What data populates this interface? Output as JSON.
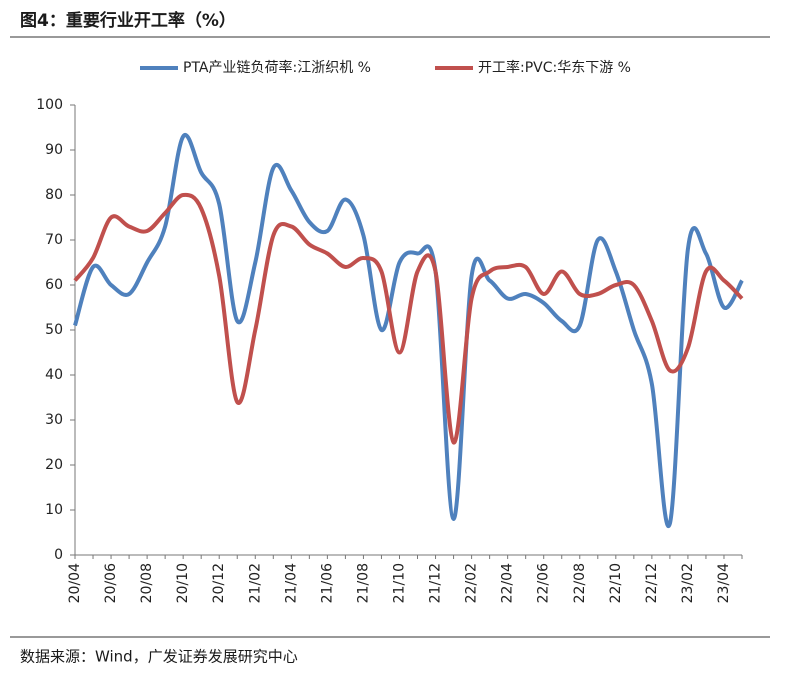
{
  "chart_data": {
    "type": "line",
    "title": "图4：重要行业开工率（%）",
    "source": "数据来源：Wind，广发证券发展研究中心",
    "categories": [
      "20/04",
      null,
      "20/06",
      null,
      "20/08",
      null,
      "20/10",
      null,
      "20/12",
      null,
      "21/02",
      null,
      "21/04",
      null,
      "21/06",
      null,
      "21/08",
      null,
      "21/10",
      null,
      "21/12",
      null,
      "22/02",
      null,
      "22/04",
      null,
      "22/06",
      null,
      "22/08",
      null,
      "22/10",
      null,
      "22/12",
      null,
      "23/02",
      null,
      "23/04",
      null
    ],
    "series": [
      {
        "name": "PTA产业链负荷率:江浙织机 %",
        "color": "#4f81bd",
        "values": [
          51,
          64,
          60,
          58,
          65,
          73,
          93,
          85,
          78,
          52,
          65,
          86,
          81,
          74,
          72,
          79,
          71,
          50,
          65,
          67,
          63,
          8,
          62,
          61,
          57,
          58,
          56,
          52,
          51,
          70,
          63,
          50,
          38,
          7,
          68,
          67,
          55,
          61
        ]
      },
      {
        "name": "开工率:PVC:华东下游 %",
        "color": "#c0504d",
        "values": [
          61,
          66,
          75,
          73,
          72,
          76,
          80,
          77,
          62,
          34,
          50,
          71,
          73,
          69,
          67,
          64,
          66,
          63,
          45,
          63,
          63,
          25,
          57,
          63,
          64,
          64,
          58,
          63,
          58,
          58,
          60,
          60,
          52,
          41,
          46,
          63,
          61,
          57
        ]
      }
    ],
    "ylim": [
      0,
      100
    ],
    "yticks": [
      0,
      10,
      20,
      30,
      40,
      50,
      60,
      70,
      80,
      90,
      100
    ],
    "grid": false,
    "legend": "top"
  }
}
